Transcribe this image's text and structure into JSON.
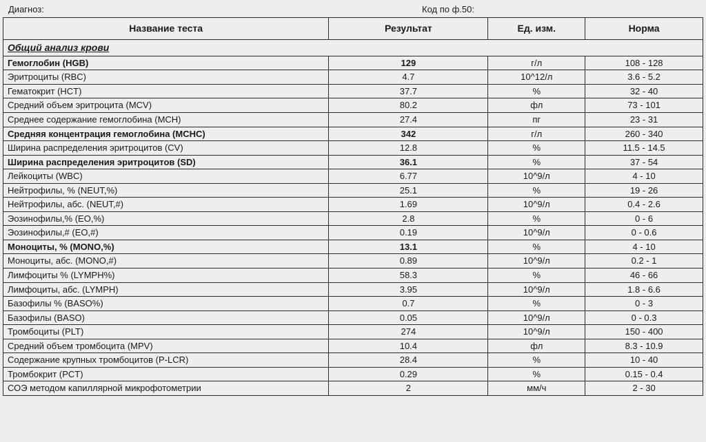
{
  "header": {
    "diagnoz_label": "Диагноз:",
    "kod_label": "Код по ф.50:"
  },
  "table": {
    "columns": [
      "Название теста",
      "Результат",
      "Ед. изм.",
      "Норма"
    ],
    "section_title": "Общий анализ крови",
    "rows": [
      {
        "name": "Гемоглобин (HGB)",
        "result": "129",
        "unit": "г/л",
        "norm": "108 - 128",
        "bold": true
      },
      {
        "name": "Эритроциты (RBC)",
        "result": "4.7",
        "unit": "10^12/л",
        "norm": "3.6 - 5.2",
        "bold": false
      },
      {
        "name": "Гематокрит (HCT)",
        "result": "37.7",
        "unit": "%",
        "norm": "32 - 40",
        "bold": false
      },
      {
        "name": "Средний объем эритроцита (MCV)",
        "result": "80.2",
        "unit": "фл",
        "norm": "73 - 101",
        "bold": false
      },
      {
        "name": "Среднее содержание гемоглобина (MCH)",
        "result": "27.4",
        "unit": "пг",
        "norm": "23 - 31",
        "bold": false
      },
      {
        "name": "Средняя концентрация гемоглобина (MCHC)",
        "result": "342",
        "unit": "г/л",
        "norm": "260 - 340",
        "bold": true
      },
      {
        "name": "Ширина распределения эритроцитов (CV)",
        "result": "12.8",
        "unit": "%",
        "norm": "11.5 - 14.5",
        "bold": false
      },
      {
        "name": "Ширина распределения эритроцитов (SD)",
        "result": "36.1",
        "unit": "%",
        "norm": "37 - 54",
        "bold": true
      },
      {
        "name": "Лейкоциты (WBC)",
        "result": "6.77",
        "unit": "10^9/л",
        "norm": "4 - 10",
        "bold": false
      },
      {
        "name": "Нейтрофилы, % (NEUT,%)",
        "result": "25.1",
        "unit": "%",
        "norm": "19 - 26",
        "bold": false
      },
      {
        "name": "Нейтрофилы, абс. (NEUT,#)",
        "result": "1.69",
        "unit": "10^9/л",
        "norm": "0.4 - 2.6",
        "bold": false
      },
      {
        "name": "Эозинофилы,% (EO,%)",
        "result": "2.8",
        "unit": "%",
        "norm": "0 - 6",
        "bold": false
      },
      {
        "name": "Эозинофилы,# (EO,#)",
        "result": "0.19",
        "unit": "10^9/л",
        "norm": "0 - 0.6",
        "bold": false
      },
      {
        "name": "Моноциты, % (MONO,%)",
        "result": "13.1",
        "unit": "%",
        "norm": "4 - 10",
        "bold": true
      },
      {
        "name": "Моноциты, абс. (MONO,#)",
        "result": "0.89",
        "unit": "10^9/л",
        "norm": "0.2 - 1",
        "bold": false
      },
      {
        "name": "Лимфоциты % (LYMPH%)",
        "result": "58.3",
        "unit": "%",
        "norm": "46 - 66",
        "bold": false
      },
      {
        "name": "Лимфоциты, абс. (LYMPH)",
        "result": "3.95",
        "unit": "10^9/л",
        "norm": "1.8 - 6.6",
        "bold": false
      },
      {
        "name": "Базофилы % (BASO%)",
        "result": "0.7",
        "unit": "%",
        "norm": "0 - 3",
        "bold": false
      },
      {
        "name": "Базофилы (BASO)",
        "result": "0.05",
        "unit": "10^9/л",
        "norm": "0 - 0.3",
        "bold": false
      },
      {
        "name": "Тромбоциты (PLT)",
        "result": "274",
        "unit": "10^9/л",
        "norm": "150 - 400",
        "bold": false
      },
      {
        "name": "Средний объем тромбоцита (MPV)",
        "result": "10.4",
        "unit": "фл",
        "norm": "8.3 - 10.9",
        "bold": false
      },
      {
        "name": "Содержание крупных тромбоцитов (P-LCR)",
        "result": "28.4",
        "unit": "%",
        "norm": "10 - 40",
        "bold": false
      },
      {
        "name": "Тромбокрит (PCT)",
        "result": "0.29",
        "unit": "%",
        "norm": "0.15 - 0.4",
        "bold": false
      },
      {
        "name": "СОЭ методом капиллярной микрофотометрии",
        "result": "2",
        "unit": "мм/ч",
        "norm": "2 - 30",
        "bold": false
      }
    ]
  }
}
